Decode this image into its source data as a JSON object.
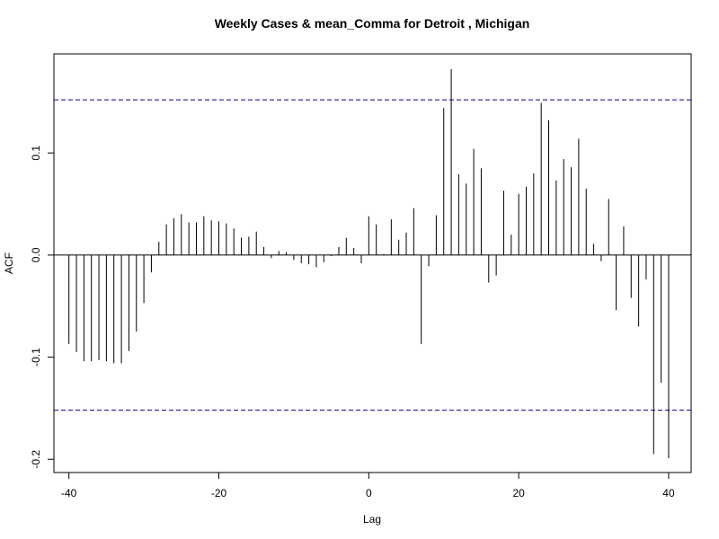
{
  "chart_data": {
    "type": "bar",
    "title": "Weekly Cases & mean_Comma for Detroit , Michigan",
    "xlabel": "Lag",
    "ylabel": "ACF",
    "xlim": [
      -42,
      43
    ],
    "ylim": [
      -0.213,
      0.197
    ],
    "x_ticks": [
      -40,
      -20,
      0,
      20,
      40
    ],
    "y_ticks": [
      -0.2,
      -0.1,
      0.0,
      0.1
    ],
    "y_tick_labels": [
      "-0.2",
      "-0.1",
      "0.0",
      "0.1"
    ],
    "confidence_band": [
      0.152,
      -0.152
    ],
    "zero_line": 0,
    "x": [
      -40,
      -39,
      -38,
      -37,
      -36,
      -35,
      -34,
      -33,
      -32,
      -31,
      -30,
      -29,
      -28,
      -27,
      -26,
      -25,
      -24,
      -23,
      -22,
      -21,
      -20,
      -19,
      -18,
      -17,
      -16,
      -15,
      -14,
      -13,
      -12,
      -11,
      -10,
      -9,
      -8,
      -7,
      -6,
      -5,
      -4,
      -3,
      -2,
      -1,
      0,
      1,
      2,
      3,
      4,
      5,
      6,
      7,
      8,
      9,
      10,
      11,
      12,
      13,
      14,
      15,
      16,
      17,
      18,
      19,
      20,
      21,
      22,
      23,
      24,
      25,
      26,
      27,
      28,
      29,
      30,
      31,
      32,
      33,
      34,
      35,
      36,
      37,
      38,
      39,
      40
    ],
    "values": [
      -0.087,
      -0.095,
      -0.104,
      -0.104,
      -0.103,
      -0.104,
      -0.106,
      -0.106,
      -0.094,
      -0.075,
      -0.047,
      -0.017,
      0.013,
      0.03,
      0.036,
      0.04,
      0.032,
      0.032,
      0.038,
      0.034,
      0.033,
      0.031,
      0.026,
      0.017,
      0.018,
      0.023,
      0.008,
      -0.003,
      0.004,
      0.003,
      -0.005,
      -0.008,
      -0.009,
      -0.012,
      -0.007,
      -0.001,
      0.008,
      0.017,
      0.007,
      -0.008,
      0.038,
      0.03,
      0.001,
      0.035,
      0.015,
      0.022,
      0.046,
      -0.087,
      -0.011,
      0.039,
      0.144,
      0.182,
      0.079,
      0.07,
      0.104,
      0.085,
      -0.027,
      -0.02,
      0.063,
      0.02,
      0.06,
      0.067,
      0.08,
      0.149,
      0.132,
      0.073,
      0.094,
      0.086,
      0.114,
      0.065,
      0.011,
      -0.006,
      0.055,
      -0.054,
      0.028,
      -0.042,
      -0.07,
      -0.024,
      -0.195,
      -0.125,
      -0.199
    ]
  },
  "colors": {
    "bars": "#000000",
    "confidence_band": "#00008b",
    "frame": "#000000",
    "background": "#ffffff"
  }
}
